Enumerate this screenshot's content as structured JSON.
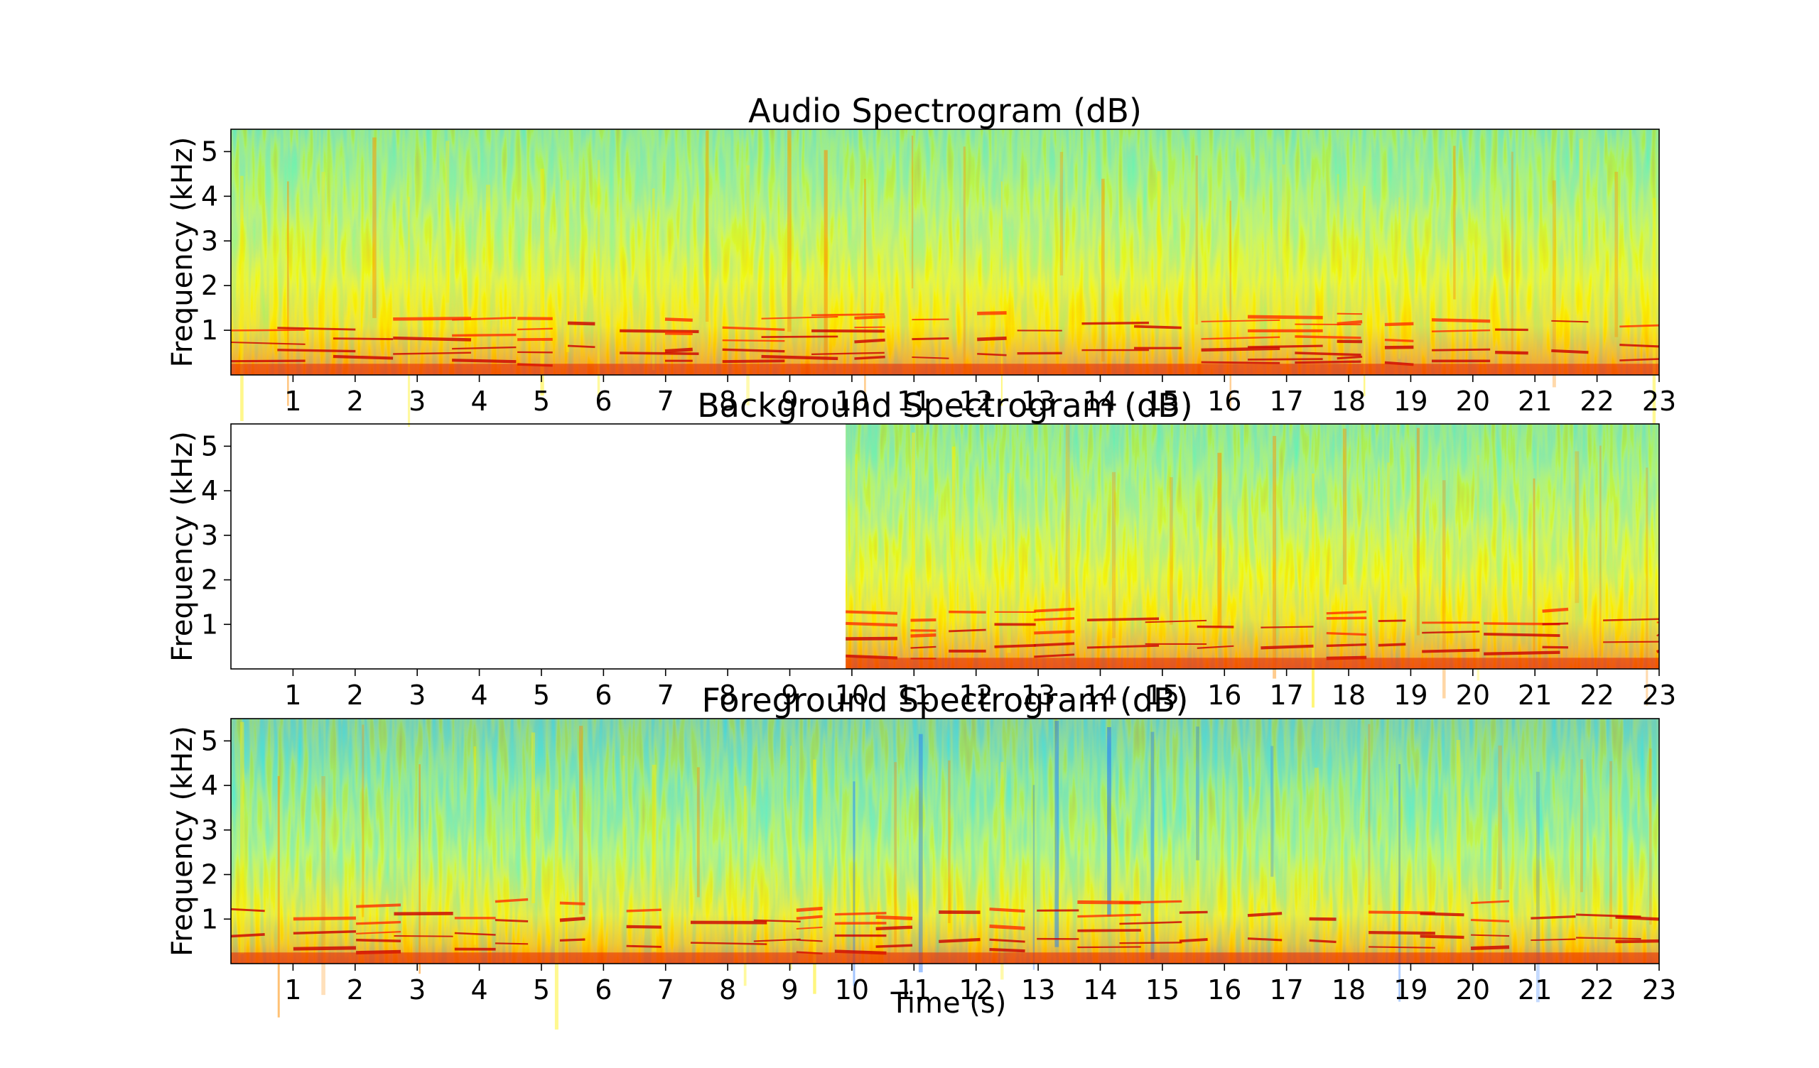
{
  "colors": {
    "background": "#ffffff",
    "colormap": "jet",
    "cmap_low": "#0000ff",
    "cmap_mid": "#ffff00",
    "cmap_high": "#ff0000"
  },
  "chart_data": [
    {
      "type": "heatmap",
      "title": "Audio Spectrogram (dB)",
      "xlabel": "",
      "ylabel": "Frequency (kHz)",
      "xlim": [
        0,
        23
      ],
      "ylim": [
        0,
        5.5
      ],
      "xticks": [
        "1",
        "2",
        "3",
        "4",
        "5",
        "6",
        "7",
        "8",
        "9",
        "10",
        "11",
        "12",
        "13",
        "14",
        "15",
        "16",
        "17",
        "18",
        "19",
        "20",
        "21",
        "22",
        "23"
      ],
      "yticks": [
        "1",
        "2",
        "3",
        "4",
        "5"
      ],
      "data_start_s": 0,
      "colormap": "jet",
      "grid": false
    },
    {
      "type": "heatmap",
      "title": "Background Spectrogram (dB)",
      "xlabel": "",
      "ylabel": "Frequency (kHz)",
      "xlim": [
        0,
        23
      ],
      "ylim": [
        0,
        5.5
      ],
      "xticks": [
        "1",
        "2",
        "3",
        "4",
        "5",
        "6",
        "7",
        "8",
        "9",
        "10",
        "11",
        "12",
        "13",
        "14",
        "15",
        "16",
        "17",
        "18",
        "19",
        "20",
        "21",
        "22",
        "23"
      ],
      "yticks": [
        "1",
        "2",
        "3",
        "4",
        "5"
      ],
      "data_start_s": 9.9,
      "colormap": "jet",
      "grid": false
    },
    {
      "type": "heatmap",
      "title": "Foreground Spectrogram (dB)",
      "xlabel": "Time (s)",
      "ylabel": "Frequency (kHz)",
      "xlim": [
        0,
        23
      ],
      "ylim": [
        0,
        5.5
      ],
      "xticks": [
        "1",
        "2",
        "3",
        "4",
        "5",
        "6",
        "7",
        "8",
        "9",
        "10",
        "11",
        "12",
        "13",
        "14",
        "15",
        "16",
        "17",
        "18",
        "19",
        "20",
        "21",
        "22",
        "23"
      ],
      "yticks": [
        "1",
        "2",
        "3",
        "4",
        "5"
      ],
      "data_start_s": 0,
      "colormap": "jet",
      "grid": false
    }
  ]
}
